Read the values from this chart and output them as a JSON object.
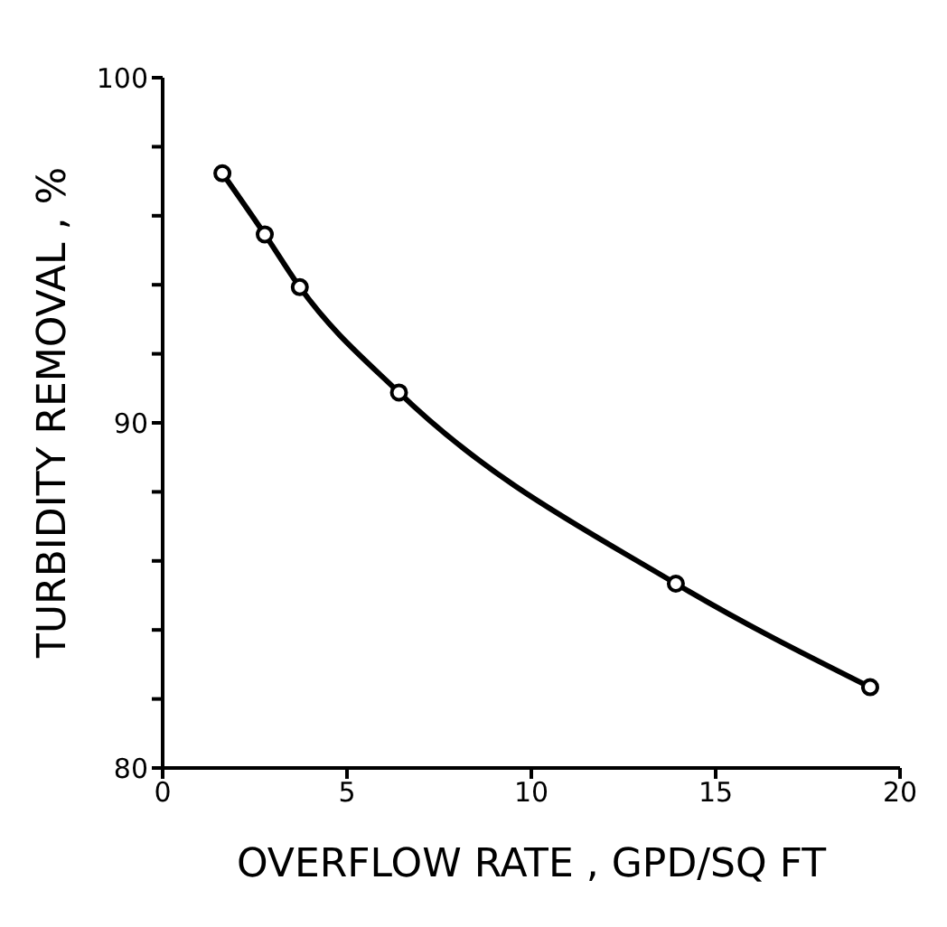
{
  "chart_data": {
    "type": "line",
    "xlabel": "OVERFLOW RATE , GPD/SQ FT",
    "ylabel": "TURBIDITY REMOVAL , %",
    "x": [
      1.62,
      2.77,
      3.72,
      6.41,
      13.92,
      19.19
    ],
    "series": [
      {
        "color": "#000000",
        "values": [
          97.23,
          95.46,
          93.93,
          90.88,
          85.34,
          82.34
        ]
      }
    ],
    "xlim": [
      0,
      20
    ],
    "xticks": [
      0,
      5,
      10,
      15,
      20
    ],
    "ylim": [
      80,
      100
    ],
    "yticks": [
      80,
      {
        "value": 82,
        "label": null
      },
      {
        "value": 84,
        "label": null
      },
      {
        "value": 86,
        "label": null
      },
      {
        "value": 88,
        "label": null
      },
      90,
      {
        "value": 92,
        "label": null
      },
      {
        "value": 94,
        "label": null
      },
      {
        "value": 96,
        "label": null
      },
      {
        "value": 98,
        "label": null
      },
      100
    ],
    "marker": "circle",
    "line_style": "solid",
    "grid": false,
    "legend": false
  }
}
